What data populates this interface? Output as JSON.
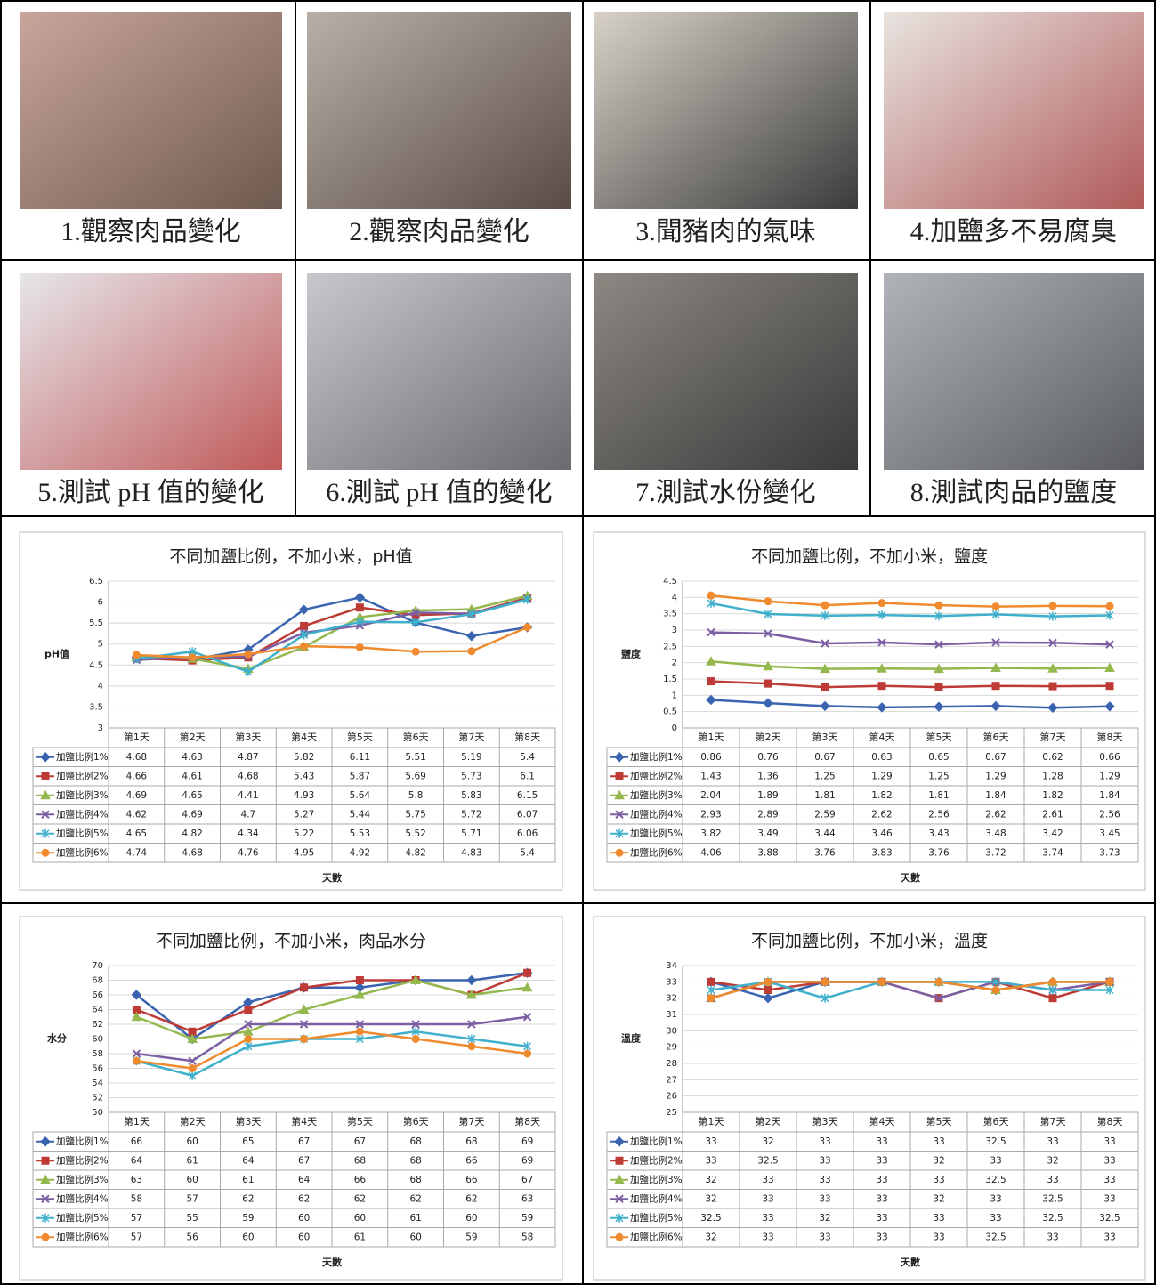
{
  "photos": [
    {
      "caption": "1.觀察肉品變化"
    },
    {
      "caption": "2.觀察肉品變化"
    },
    {
      "caption": "3.聞豬肉的氣味"
    },
    {
      "caption": "4.加鹽多不易腐臭"
    },
    {
      "caption": "5.測試 pH 值的變化"
    },
    {
      "caption": "6.測試 pH 值的變化"
    },
    {
      "caption": "7.測試水份變化"
    },
    {
      "caption": "8.測試肉品的鹽度"
    }
  ],
  "chart_data": [
    {
      "type": "line",
      "title": "不同加鹽比例，不加小米，pH值",
      "y_label": "pH值",
      "x_label": "天數",
      "categories": [
        "第1天",
        "第2天",
        "第3天",
        "第4天",
        "第5天",
        "第6天",
        "第7天",
        "第8天"
      ],
      "ylim": [
        3,
        6.5
      ],
      "yticks": [
        3,
        3.5,
        4,
        4.5,
        5,
        5.5,
        6,
        6.5
      ],
      "grid": true,
      "series": [
        {
          "name": "加鹽比例1%",
          "color": "#3a64b0",
          "values": [
            4.68,
            4.63,
            4.87,
            5.82,
            6.11,
            5.51,
            5.19,
            5.4
          ]
        },
        {
          "name": "加鹽比例2%",
          "color": "#be3a34",
          "values": [
            4.66,
            4.61,
            4.68,
            5.43,
            5.87,
            5.69,
            5.73,
            6.1
          ]
        },
        {
          "name": "加鹽比例3%",
          "color": "#94b84e",
          "values": [
            4.69,
            4.65,
            4.41,
            4.93,
            5.64,
            5.8,
            5.83,
            6.15
          ]
        },
        {
          "name": "加鹽比例4%",
          "color": "#7c5ea2",
          "values": [
            4.62,
            4.69,
            4.7,
            5.27,
            5.44,
            5.75,
            5.72,
            6.07
          ]
        },
        {
          "name": "加鹽比例5%",
          "color": "#3fb0cc",
          "values": [
            4.65,
            4.82,
            4.34,
            5.22,
            5.53,
            5.52,
            5.71,
            6.06
          ]
        },
        {
          "name": "加鹽比例6%",
          "color": "#f08a2e",
          "values": [
            4.74,
            4.68,
            4.76,
            4.95,
            4.92,
            4.82,
            4.83,
            5.4
          ]
        }
      ]
    },
    {
      "type": "line",
      "title": "不同加鹽比例，不加小米，鹽度",
      "y_label": "鹽度",
      "x_label": "天數",
      "categories": [
        "第1天",
        "第2天",
        "第3天",
        "第4天",
        "第5天",
        "第6天",
        "第7天",
        "第8天"
      ],
      "ylim": [
        0,
        4.5
      ],
      "yticks": [
        0,
        0.5,
        1,
        1.5,
        2,
        2.5,
        3,
        3.5,
        4,
        4.5
      ],
      "grid": true,
      "series": [
        {
          "name": "加鹽比例1%",
          "color": "#3a64b0",
          "values": [
            0.86,
            0.76,
            0.67,
            0.63,
            0.65,
            0.67,
            0.62,
            0.66
          ]
        },
        {
          "name": "加鹽比例2%",
          "color": "#be3a34",
          "values": [
            1.43,
            1.36,
            1.25,
            1.29,
            1.25,
            1.29,
            1.28,
            1.29
          ]
        },
        {
          "name": "加鹽比例3%",
          "color": "#94b84e",
          "values": [
            2.04,
            1.89,
            1.81,
            1.82,
            1.81,
            1.84,
            1.82,
            1.84
          ]
        },
        {
          "name": "加鹽比例4%",
          "color": "#7c5ea2",
          "values": [
            2.93,
            2.89,
            2.59,
            2.62,
            2.56,
            2.62,
            2.61,
            2.56
          ]
        },
        {
          "name": "加鹽比例5%",
          "color": "#3fb0cc",
          "values": [
            3.82,
            3.49,
            3.44,
            3.46,
            3.43,
            3.48,
            3.42,
            3.45
          ]
        },
        {
          "name": "加鹽比例6%",
          "color": "#f08a2e",
          "values": [
            4.06,
            3.88,
            3.76,
            3.83,
            3.76,
            3.72,
            3.74,
            3.73
          ]
        }
      ]
    },
    {
      "type": "line",
      "title": "不同加鹽比例，不加小米，肉品水分",
      "y_label": "水分",
      "x_label": "天數",
      "categories": [
        "第1天",
        "第2天",
        "第3天",
        "第4天",
        "第5天",
        "第6天",
        "第7天",
        "第8天"
      ],
      "ylim": [
        50,
        70
      ],
      "yticks": [
        50,
        52,
        54,
        56,
        58,
        60,
        62,
        64,
        66,
        68,
        70
      ],
      "grid": true,
      "series": [
        {
          "name": "加鹽比例1%",
          "color": "#3a64b0",
          "values": [
            66,
            60,
            65,
            67,
            67,
            68,
            68,
            69
          ]
        },
        {
          "name": "加鹽比例2%",
          "color": "#be3a34",
          "values": [
            64,
            61,
            64,
            67,
            68,
            68,
            66,
            69
          ]
        },
        {
          "name": "加鹽比例3%",
          "color": "#94b84e",
          "values": [
            63,
            60,
            61,
            64,
            66,
            68,
            66,
            67
          ]
        },
        {
          "name": "加鹽比例4%",
          "color": "#7c5ea2",
          "values": [
            58,
            57,
            62,
            62,
            62,
            62,
            62,
            63
          ]
        },
        {
          "name": "加鹽比例5%",
          "color": "#3fb0cc",
          "values": [
            57,
            55,
            59,
            60,
            60,
            61,
            60,
            59
          ]
        },
        {
          "name": "加鹽比例6%",
          "color": "#f08a2e",
          "values": [
            57,
            56,
            60,
            60,
            61,
            60,
            59,
            58
          ]
        }
      ]
    },
    {
      "type": "line",
      "title": "不同加鹽比例，不加小米，溫度",
      "y_label": "溫度",
      "x_label": "天數",
      "categories": [
        "第1天",
        "第2天",
        "第3天",
        "第4天",
        "第5天",
        "第6天",
        "第7天",
        "第8天"
      ],
      "ylim": [
        25,
        34
      ],
      "yticks": [
        25,
        26,
        27,
        28,
        29,
        30,
        31,
        32,
        33,
        34
      ],
      "grid": true,
      "series": [
        {
          "name": "加鹽比例1%",
          "color": "#3a64b0",
          "values": [
            33,
            32,
            33,
            33,
            33,
            32.5,
            33,
            33
          ]
        },
        {
          "name": "加鹽比例2%",
          "color": "#be3a34",
          "values": [
            33,
            32.5,
            33,
            33,
            32,
            33,
            32,
            33
          ]
        },
        {
          "name": "加鹽比例3%",
          "color": "#94b84e",
          "values": [
            32,
            33,
            33,
            33,
            33,
            32.5,
            33,
            33
          ]
        },
        {
          "name": "加鹽比例4%",
          "color": "#7c5ea2",
          "values": [
            32,
            33,
            33,
            33,
            32,
            33,
            32.5,
            33
          ]
        },
        {
          "name": "加鹽比例5%",
          "color": "#3fb0cc",
          "values": [
            32.5,
            33,
            32,
            33,
            33,
            33,
            32.5,
            32.5
          ]
        },
        {
          "name": "加鹽比例6%",
          "color": "#f08a2e",
          "values": [
            32,
            33,
            33,
            33,
            33,
            32.5,
            33,
            33
          ]
        }
      ]
    }
  ]
}
